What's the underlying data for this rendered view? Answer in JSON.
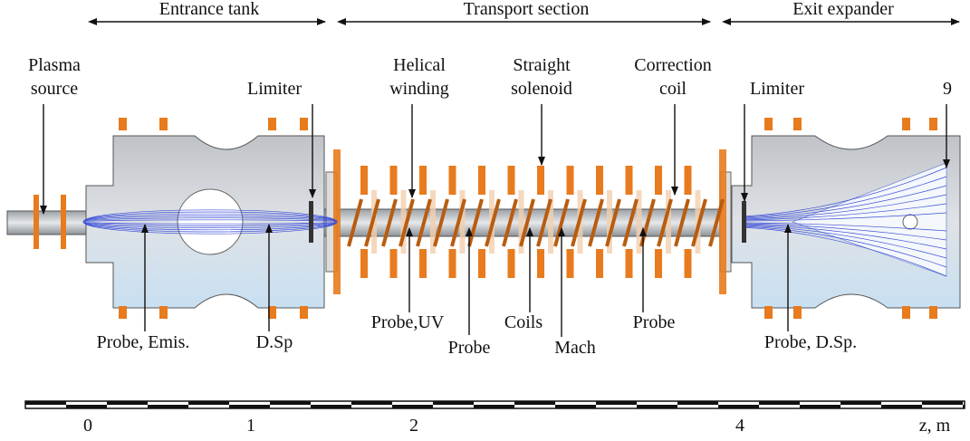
{
  "sections": [
    "Entrance tank",
    "Transport section",
    "Exit expander"
  ],
  "labels": [
    {
      "lines": [
        "Plasma",
        "source"
      ]
    },
    {
      "lines": [
        "Limiter"
      ]
    },
    {
      "lines": [
        "Helical",
        "winding"
      ]
    },
    {
      "lines": [
        "Straight",
        "solenoid"
      ]
    },
    {
      "lines": [
        "Correction",
        "coil"
      ]
    },
    {
      "lines": [
        "Limiter"
      ]
    },
    {
      "lines": [
        "9"
      ]
    },
    {
      "lines": [
        "Probe, Emis."
      ]
    },
    {
      "lines": [
        "D.Sp"
      ]
    },
    {
      "lines": [
        "Probe,UV"
      ]
    },
    {
      "lines": [
        "Probe"
      ]
    },
    {
      "lines": [
        "Coils"
      ]
    },
    {
      "lines": [
        "Mach"
      ]
    },
    {
      "lines": [
        "Probe"
      ]
    },
    {
      "lines": [
        "Probe, D.Sp."
      ]
    }
  ],
  "scale": {
    "ticks": [
      "0",
      "1",
      "2",
      "4"
    ],
    "unit": "z, m"
  }
}
